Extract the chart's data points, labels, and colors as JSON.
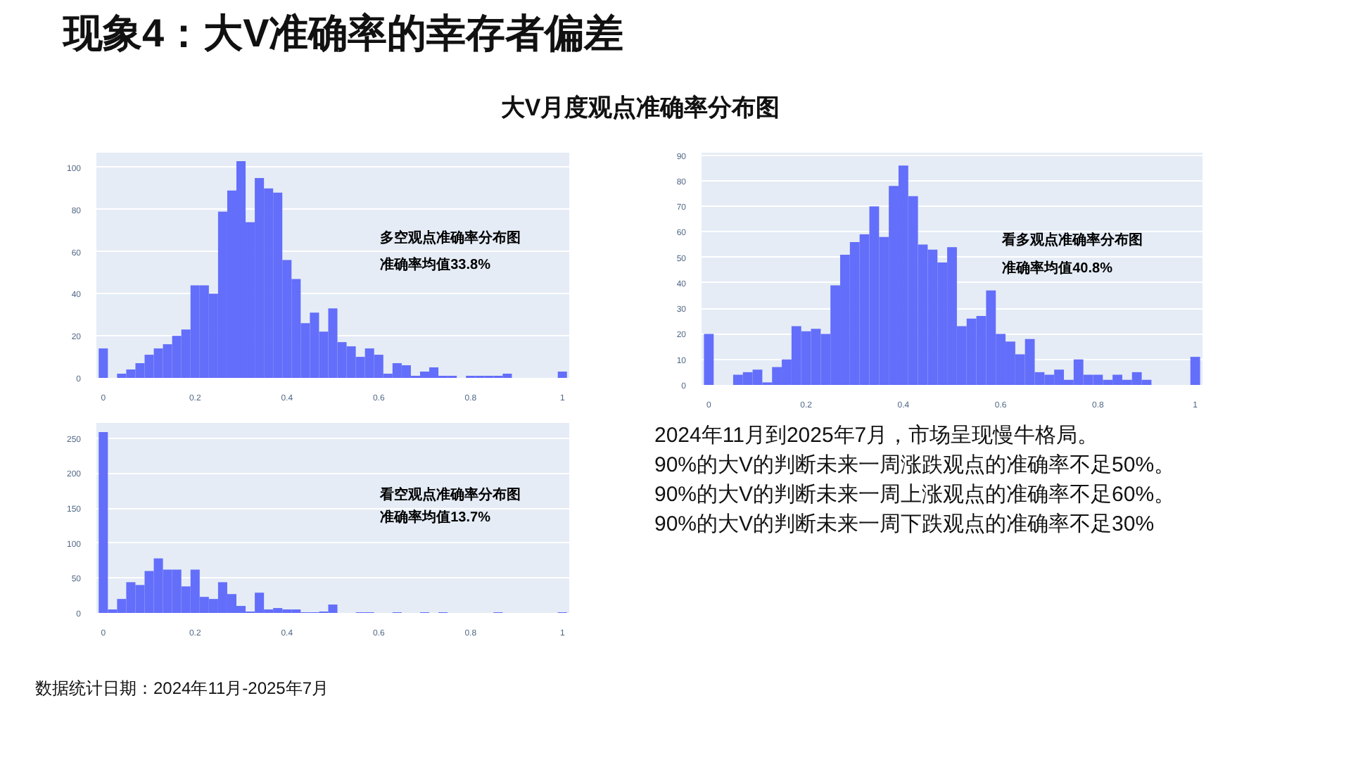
{
  "chart_data": [
    {
      "type": "other",
      "title": "现象4：大V准确率的幸存者偏差",
      "subtitle": "大V月度观点准确率分布图",
      "annotations": [
        "2024年11月到2025年7月，市场呈现慢牛格局。",
        "90%的大V的判断未来一周涨跌观点的准确率不足50%。",
        "90%的大V的判断未来一周上涨观点的准确率不足60%。",
        "90%的大V的判断未来一周下跌观点的准确率不足30%",
        "数据统计日期：2024年11月-2025年7月"
      ]
    },
    {
      "type": "histogram",
      "color": "#636efa",
      "grid": "y",
      "annotations": [
        "多空观点准确率分布图",
        "准确率均值33.8%"
      ],
      "bins": [
        -0.01,
        0.01,
        0.03,
        0.05,
        0.07,
        0.09,
        0.11,
        0.13,
        0.15,
        0.17,
        0.19,
        0.21,
        0.23,
        0.25,
        0.27,
        0.29,
        0.31,
        0.33,
        0.35,
        0.37,
        0.39,
        0.41,
        0.43,
        0.45,
        0.47,
        0.49,
        0.51,
        0.53,
        0.55,
        0.57,
        0.59,
        0.61,
        0.63,
        0.65,
        0.67,
        0.69,
        0.71,
        0.73,
        0.75,
        0.77,
        0.79,
        0.81,
        0.83,
        0.85,
        0.87,
        0.89,
        0.91,
        0.93,
        0.95,
        0.97,
        0.99,
        1.01
      ],
      "values": [
        14,
        0,
        2,
        4,
        7,
        11,
        14,
        16,
        20,
        23,
        44,
        44,
        40,
        79,
        89,
        103,
        74,
        95,
        90,
        88,
        56,
        47,
        26,
        31,
        22,
        33,
        17,
        15,
        10,
        14,
        11,
        2,
        7,
        6,
        1,
        3,
        5,
        1,
        1,
        0,
        1,
        1,
        1,
        1,
        2,
        0,
        0,
        0,
        0,
        0,
        3
      ],
      "xlim": [
        -0.015,
        1.015
      ],
      "xticks": [
        0,
        0.2,
        0.4,
        0.6,
        0.8,
        1
      ],
      "ylim": [
        0,
        107
      ],
      "yticks": [
        0,
        20,
        40,
        60,
        80,
        100
      ]
    },
    {
      "type": "histogram",
      "color": "#636efa",
      "grid": "y",
      "annotations": [
        "看多观点准确率分布图",
        "准确率均值40.8%"
      ],
      "bins": [
        -0.01,
        0.01,
        0.03,
        0.05,
        0.07,
        0.09,
        0.11,
        0.13,
        0.15,
        0.17,
        0.19,
        0.21,
        0.23,
        0.25,
        0.27,
        0.29,
        0.31,
        0.33,
        0.35,
        0.37,
        0.39,
        0.41,
        0.43,
        0.45,
        0.47,
        0.49,
        0.51,
        0.53,
        0.55,
        0.57,
        0.59,
        0.61,
        0.63,
        0.65,
        0.67,
        0.69,
        0.71,
        0.73,
        0.75,
        0.77,
        0.79,
        0.81,
        0.83,
        0.85,
        0.87,
        0.89,
        0.91,
        0.93,
        0.95,
        0.97,
        0.99,
        1.01
      ],
      "values": [
        20,
        0,
        0,
        4,
        5,
        6,
        1,
        7,
        10,
        23,
        21,
        22,
        20,
        39,
        51,
        56,
        59,
        70,
        58,
        78,
        86,
        74,
        55,
        53,
        48,
        54,
        23,
        26,
        27,
        37,
        20,
        17,
        12,
        18,
        5,
        4,
        6,
        2,
        10,
        4,
        4,
        2,
        4,
        2,
        5,
        2,
        0,
        0,
        0,
        0,
        11
      ],
      "xlim": [
        -0.015,
        1.015
      ],
      "xticks": [
        0,
        0.2,
        0.4,
        0.6,
        0.8,
        1
      ],
      "ylim": [
        0,
        91
      ],
      "yticks": [
        0,
        10,
        20,
        30,
        40,
        50,
        60,
        70,
        80,
        90
      ]
    },
    {
      "type": "histogram",
      "color": "#636efa",
      "grid": "y",
      "annotations": [
        "看空观点准确率分布图",
        "准确率均值13.7%"
      ],
      "bins": [
        -0.01,
        0.01,
        0.03,
        0.05,
        0.07,
        0.09,
        0.11,
        0.13,
        0.15,
        0.17,
        0.19,
        0.21,
        0.23,
        0.25,
        0.27,
        0.29,
        0.31,
        0.33,
        0.35,
        0.37,
        0.39,
        0.41,
        0.43,
        0.45,
        0.47,
        0.49,
        0.51,
        0.53,
        0.55,
        0.57,
        0.59,
        0.61,
        0.63,
        0.65,
        0.67,
        0.69,
        0.71,
        0.73,
        0.75,
        0.77,
        0.79,
        0.81,
        0.83,
        0.85,
        0.87,
        0.89,
        0.91,
        0.93,
        0.95,
        0.97,
        0.99,
        1.01
      ],
      "values": [
        259,
        5,
        20,
        44,
        40,
        60,
        78,
        62,
        62,
        38,
        62,
        23,
        20,
        44,
        27,
        10,
        2,
        29,
        5,
        7,
        5,
        5,
        1,
        1,
        2,
        12,
        0,
        0,
        1,
        1,
        0,
        0,
        1,
        0,
        0,
        1,
        0,
        1,
        0,
        0,
        0,
        0,
        0,
        1,
        0,
        0,
        0,
        0,
        0,
        0,
        1
      ],
      "xlim": [
        -0.015,
        1.015
      ],
      "xticks": [
        0,
        0.2,
        0.4,
        0.6,
        0.8,
        1
      ],
      "ylim": [
        0,
        272
      ],
      "yticks": [
        0,
        50,
        100,
        150,
        200,
        250
      ]
    }
  ]
}
